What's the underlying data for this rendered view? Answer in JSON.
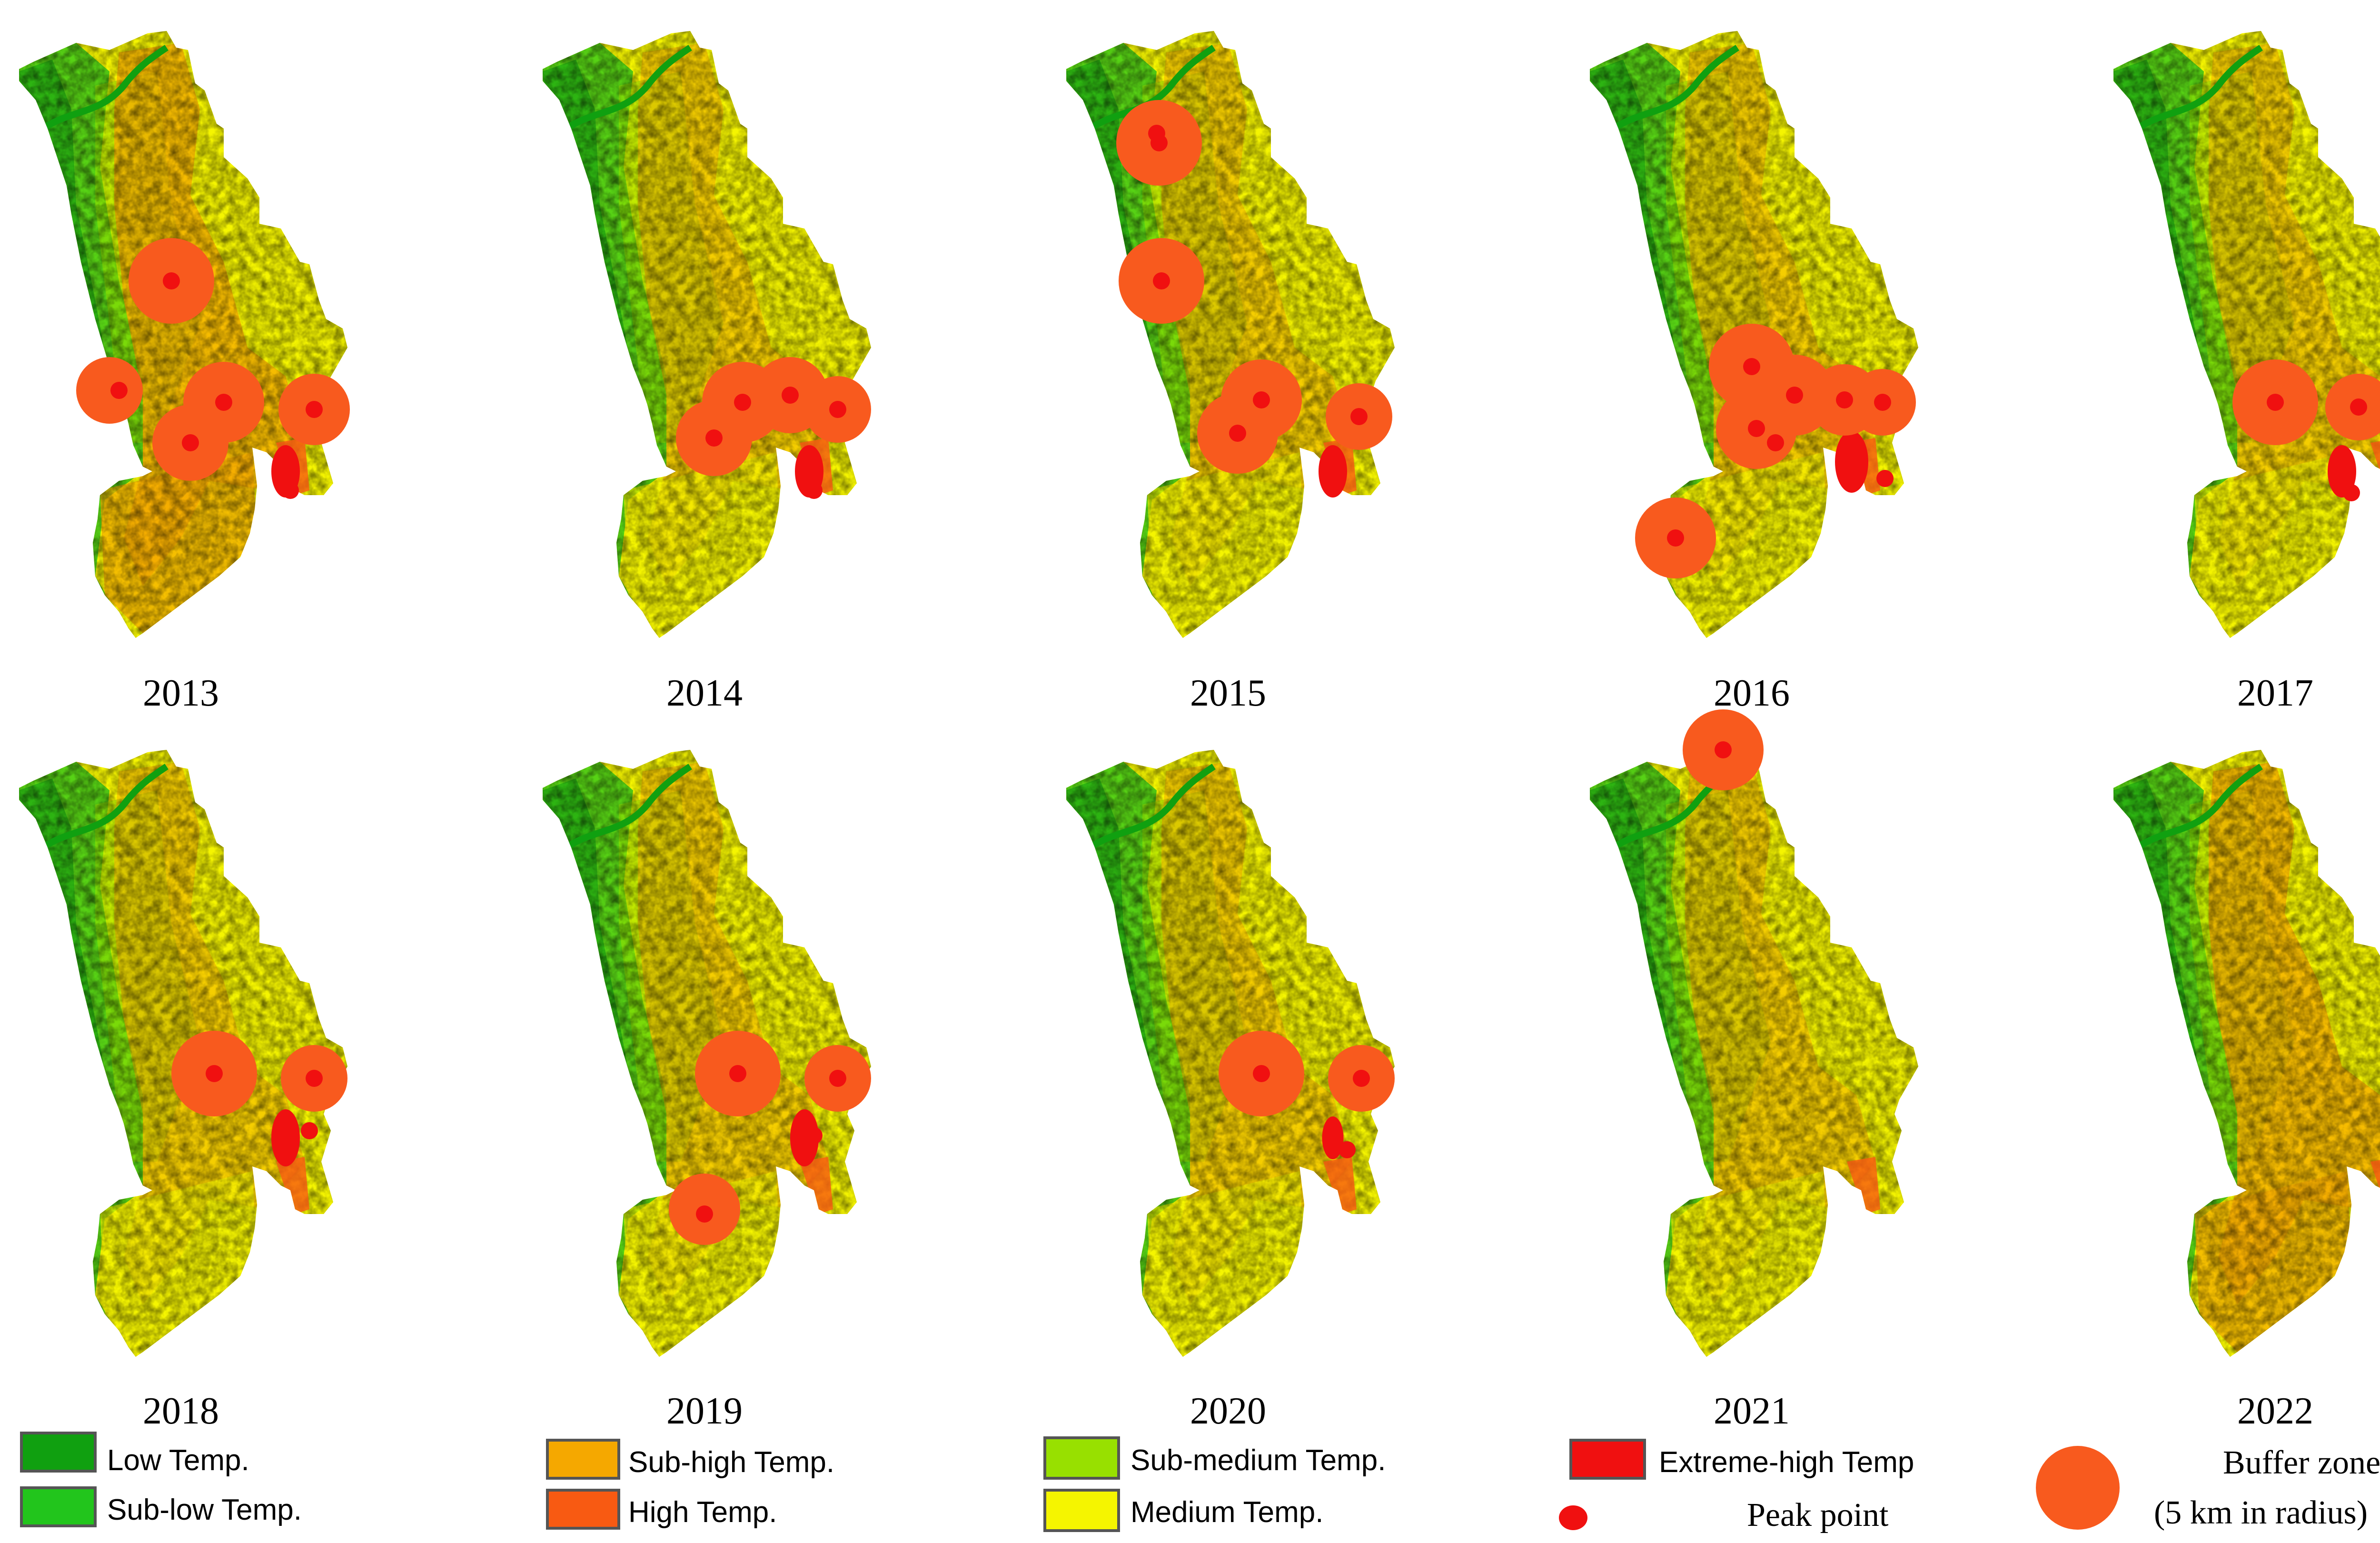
{
  "colors": {
    "low": "#10a010",
    "sub_low": "#22c51c",
    "sub_medium": "#98e000",
    "medium": "#f5f500",
    "sub_high": "#f5a800",
    "high": "#f85a12",
    "extreme_high": "#f01010",
    "buffer": "#f85a1e",
    "peak": "#f01010"
  },
  "maps": [
    {
      "year": "2013",
      "buffers": [
        [
          5,
          55
        ],
        [
          6,
          47
        ],
        [
          5,
          40
        ],
        [
          6,
          27
        ],
        [
          7,
          11
        ]
      ],
      "peaks": [
        [
          5,
          55
        ],
        [
          6,
          47
        ],
        [
          5,
          40
        ],
        [
          6,
          27
        ],
        [
          7,
          11
        ],
        [
          4,
          66
        ]
      ],
      "extremes": [
        [
          7,
          5
        ],
        [
          6,
          19
        ]
      ]
    },
    {
      "year": "2014",
      "buffers": [
        [
          5,
          47
        ],
        [
          6,
          37
        ],
        [
          5,
          30
        ],
        [
          6,
          17
        ],
        [
          7,
          5
        ]
      ],
      "peaks": [
        [
          5,
          47
        ],
        [
          6,
          37
        ],
        [
          5,
          30
        ],
        [
          6,
          17
        ],
        [
          7,
          5
        ],
        [
          6,
          19
        ]
      ],
      "extremes": [
        [
          7,
          5
        ],
        [
          6,
          19
        ]
      ]
    },
    {
      "year": "2015",
      "buffers": [
        [
          8,
          72
        ],
        [
          6,
          59
        ],
        [
          5,
          47
        ],
        [
          6,
          37
        ],
        [
          7,
          11
        ]
      ],
      "peaks": [
        [
          8,
          72
        ],
        [
          9,
          71
        ],
        [
          6,
          59
        ],
        [
          5,
          47
        ],
        [
          6,
          37
        ],
        [
          7,
          11
        ]
      ],
      "extremes": [
        [
          7,
          5
        ],
        [
          6,
          19
        ]
      ]
    },
    {
      "year": "2016",
      "buffers": [
        [
          5,
          47
        ],
        [
          6,
          37
        ],
        [
          5,
          47
        ],
        [
          6,
          37
        ],
        [
          6,
          19
        ],
        [
          7,
          11
        ],
        [
          7,
          5
        ],
        [
          5,
          30
        ]
      ],
      "peaks": [
        [
          5,
          47
        ],
        [
          6,
          37
        ],
        [
          5,
          47
        ],
        [
          6,
          37
        ],
        [
          6,
          19
        ],
        [
          7,
          11
        ],
        [
          7,
          5
        ],
        [
          5,
          30
        ]
      ],
      "extremes": [
        [
          7,
          5
        ],
        [
          6,
          19
        ]
      ]
    },
    {
      "year": "2017",
      "buffers": [
        [
          6,
          37
        ],
        [
          6,
          19
        ]
      ],
      "peaks": [
        [
          6,
          37
        ],
        [
          6,
          19
        ],
        [
          6,
          19
        ]
      ],
      "extremes": [
        [
          6,
          19
        ]
      ]
    },
    {
      "year": "2018",
      "buffers": [
        [
          5,
          47
        ],
        [
          6,
          37
        ]
      ],
      "peaks": [
        [
          5,
          47
        ],
        [
          6,
          37
        ],
        [
          6,
          19
        ]
      ],
      "extremes": [
        [
          7,
          5
        ],
        [
          6,
          19
        ]
      ]
    },
    {
      "year": "2019",
      "buffers": [
        [
          5,
          47
        ],
        [
          6,
          37
        ],
        [
          5,
          30
        ]
      ],
      "peaks": [
        [
          5,
          47
        ],
        [
          6,
          37
        ],
        [
          6,
          19
        ],
        [
          5,
          30
        ]
      ],
      "extremes": [
        [
          7,
          5
        ],
        [
          6,
          19
        ]
      ]
    },
    {
      "year": "2020",
      "buffers": [
        [
          5,
          47
        ],
        [
          6,
          37
        ]
      ],
      "peaks": [
        [
          5,
          47
        ],
        [
          6,
          37
        ],
        [
          6,
          19
        ]
      ],
      "extremes": [
        [
          6,
          19
        ]
      ]
    },
    {
      "year": "2021",
      "buffers": [
        [
          7,
          5
        ]
      ],
      "peaks": [
        [
          7,
          5
        ]
      ],
      "extremes": []
    },
    {
      "year": "2022",
      "buffers": [],
      "peaks": [],
      "extremes": []
    }
  ],
  "legend": {
    "low": "Low Temp.",
    "sub_low": "Sub-low Temp.",
    "sub_high": "Sub-high Temp.",
    "high": "High Temp.",
    "sub_medium": "Sub-medium Temp.",
    "medium": "Medium Temp.",
    "extreme_high": "Extreme-high Temp",
    "peak_point": "Peak point",
    "buffer_zone": "Buffer zone",
    "buffer_radius": "(5 km in radius)"
  }
}
